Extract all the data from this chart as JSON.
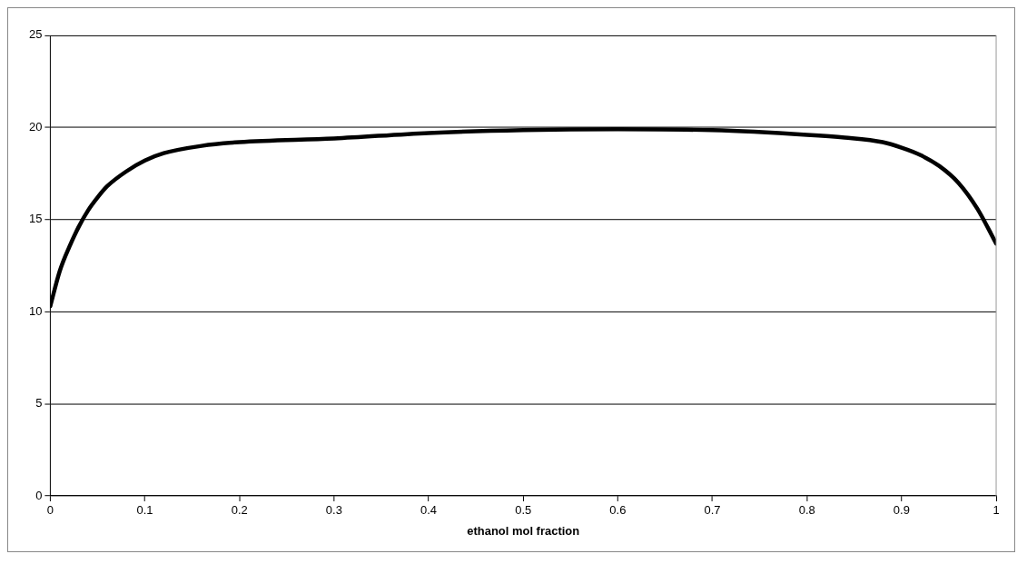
{
  "chart_data": {
    "type": "line",
    "xlabel": "ethanol mol fraction",
    "x": [
      0,
      0.01,
      0.02,
      0.03,
      0.04,
      0.05,
      0.06,
      0.08,
      0.1,
      0.12,
      0.16,
      0.2,
      0.3,
      0.4,
      0.5,
      0.6,
      0.7,
      0.8,
      0.84,
      0.88,
      0.9,
      0.92,
      0.94,
      0.96,
      0.98,
      1
    ],
    "series": [
      {
        "color": "#000000",
        "values": [
          10.3,
          12.2,
          13.5,
          14.6,
          15.5,
          16.2,
          16.8,
          17.6,
          18.2,
          18.6,
          19.0,
          19.2,
          19.4,
          19.7,
          19.85,
          19.9,
          19.85,
          19.6,
          19.45,
          19.2,
          18.9,
          18.5,
          17.9,
          17.0,
          15.6,
          13.7
        ]
      }
    ],
    "xlim": [
      0,
      1
    ],
    "xticks": [
      0,
      0.1,
      0.2,
      0.3,
      0.4,
      0.5,
      0.6,
      0.7,
      0.8,
      0.9,
      1
    ],
    "ylim": [
      0,
      25
    ],
    "yticks": [
      0,
      5,
      10,
      15,
      20,
      25
    ],
    "grid": "y",
    "legend": false,
    "marker": "none",
    "line_style": "solid"
  }
}
